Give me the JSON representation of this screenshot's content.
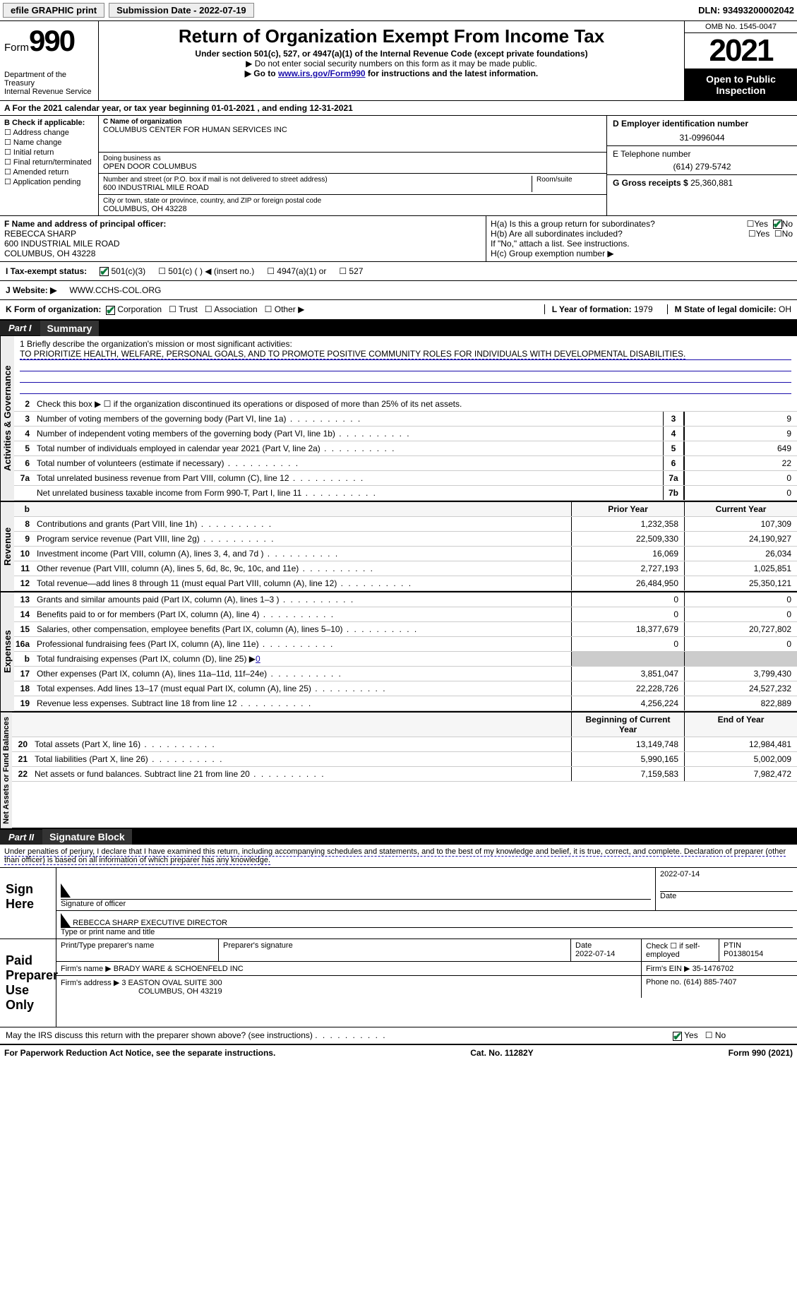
{
  "topbar": {
    "efile": "efile GRAPHIC print",
    "subdate_label": "Submission Date - ",
    "subdate": "2022-07-19",
    "dln_label": "DLN: ",
    "dln": "93493200002042"
  },
  "header": {
    "form_label": "Form",
    "form_num": "990",
    "dept": "Department of the Treasury\nInternal Revenue Service",
    "title": "Return of Organization Exempt From Income Tax",
    "sub": "Under section 501(c), 527, or 4947(a)(1) of the Internal Revenue Code (except private foundations)",
    "sub2": "▶ Do not enter social security numbers on this form as it may be made public.",
    "goto_pre": "▶ Go to ",
    "goto_link": "www.irs.gov/Form990",
    "goto_post": " for instructions and the latest information.",
    "omb": "OMB No. 1545-0047",
    "year": "2021",
    "open": "Open to Public Inspection"
  },
  "calyear": {
    "text_pre": "A For the 2021 calendar year, or tax year beginning ",
    "begin": "01-01-2021",
    "mid": " , and ending ",
    "end": "12-31-2021"
  },
  "B": {
    "label": "B Check if applicable:",
    "items": [
      "Address change",
      "Name change",
      "Initial return",
      "Final return/terminated",
      "Amended return",
      "Application pending"
    ]
  },
  "C": {
    "label": "C Name of organization",
    "name": "COLUMBUS CENTER FOR HUMAN SERVICES INC",
    "dba_label": "Doing business as",
    "dba": "OPEN DOOR COLUMBUS",
    "street_label": "Number and street (or P.O. box if mail is not delivered to street address)",
    "street": "600 INDUSTRIAL MILE ROAD",
    "room_label": "Room/suite",
    "city_label": "City or town, state or province, country, and ZIP or foreign postal code",
    "city": "COLUMBUS, OH  43228"
  },
  "D": {
    "label": "D Employer identification number",
    "value": "31-0996044"
  },
  "E": {
    "label": "E Telephone number",
    "value": "(614) 279-5742"
  },
  "G": {
    "label": "G Gross receipts $ ",
    "value": "25,360,881"
  },
  "F": {
    "label": "F  Name and address of principal officer:",
    "name": "REBECCA SHARP",
    "addr1": "600 INDUSTRIAL MILE ROAD",
    "addr2": "COLUMBUS, OH  43228"
  },
  "H": {
    "a": "H(a)  Is this a group return for subordinates?",
    "b": "H(b)  Are all subordinates included?",
    "b_note": "If \"No,\" attach a list. See instructions.",
    "c": "H(c)  Group exemption number ▶",
    "yes": "Yes",
    "no": "No"
  },
  "I": {
    "label": "I  Tax-exempt status:",
    "c3": "501(c)(3)",
    "c": "501(c) (  ) ◀ (insert no.)",
    "a1": "4947(a)(1) or",
    "s527": "527"
  },
  "J": {
    "label": "J  Website: ▶",
    "value": "WWW.CCHS-COL.ORG"
  },
  "K": {
    "label": "K Form of organization:",
    "corp": "Corporation",
    "trust": "Trust",
    "assoc": "Association",
    "other": "Other ▶"
  },
  "L": {
    "label": "L Year of formation: ",
    "value": "1979"
  },
  "M": {
    "label": "M State of legal domicile: ",
    "value": "OH"
  },
  "part1": {
    "num": "Part I",
    "title": "Summary"
  },
  "mission": {
    "label": "1  Briefly describe the organization's mission or most significant activities:",
    "text": "TO PRIORITIZE HEALTH, WELFARE, PERSONAL GOALS, AND TO PROMOTE POSITIVE COMMUNITY ROLES FOR INDIVIDUALS WITH DEVELOPMENTAL DISABILITIES."
  },
  "line2": "Check this box ▶ ☐ if the organization discontinued its operations or disposed of more than 25% of its net assets.",
  "gov_lines": [
    {
      "n": "3",
      "d": "Number of voting members of the governing body (Part VI, line 1a)",
      "box": "3",
      "v": "9"
    },
    {
      "n": "4",
      "d": "Number of independent voting members of the governing body (Part VI, line 1b)",
      "box": "4",
      "v": "9"
    },
    {
      "n": "5",
      "d": "Total number of individuals employed in calendar year 2021 (Part V, line 2a)",
      "box": "5",
      "v": "649"
    },
    {
      "n": "6",
      "d": "Total number of volunteers (estimate if necessary)",
      "box": "6",
      "v": "22"
    },
    {
      "n": "7a",
      "d": "Total unrelated business revenue from Part VIII, column (C), line 12",
      "box": "7a",
      "v": "0"
    },
    {
      "n": "",
      "d": "Net unrelated business taxable income from Form 990-T, Part I, line 11",
      "box": "7b",
      "v": "0"
    }
  ],
  "col_headers": {
    "prior": "Prior Year",
    "current": "Current Year"
  },
  "revenue": [
    {
      "n": "8",
      "d": "Contributions and grants (Part VIII, line 1h)",
      "p": "1,232,358",
      "c": "107,309"
    },
    {
      "n": "9",
      "d": "Program service revenue (Part VIII, line 2g)",
      "p": "22,509,330",
      "c": "24,190,927"
    },
    {
      "n": "10",
      "d": "Investment income (Part VIII, column (A), lines 3, 4, and 7d )",
      "p": "16,069",
      "c": "26,034"
    },
    {
      "n": "11",
      "d": "Other revenue (Part VIII, column (A), lines 5, 6d, 8c, 9c, 10c, and 11e)",
      "p": "2,727,193",
      "c": "1,025,851"
    },
    {
      "n": "12",
      "d": "Total revenue—add lines 8 through 11 (must equal Part VIII, column (A), line 12)",
      "p": "26,484,950",
      "c": "25,350,121"
    }
  ],
  "expenses": [
    {
      "n": "13",
      "d": "Grants and similar amounts paid (Part IX, column (A), lines 1–3 )",
      "p": "0",
      "c": "0"
    },
    {
      "n": "14",
      "d": "Benefits paid to or for members (Part IX, column (A), line 4)",
      "p": "0",
      "c": "0"
    },
    {
      "n": "15",
      "d": "Salaries, other compensation, employee benefits (Part IX, column (A), lines 5–10)",
      "p": "18,377,679",
      "c": "20,727,802"
    },
    {
      "n": "16a",
      "d": "Professional fundraising fees (Part IX, column (A), line 11e)",
      "p": "0",
      "c": "0"
    },
    {
      "n": "b",
      "d": "Total fundraising expenses (Part IX, column (D), line 25) ▶",
      "p": "GRAY",
      "c": "GRAY",
      "link": "0"
    },
    {
      "n": "17",
      "d": "Other expenses (Part IX, column (A), lines 11a–11d, 11f–24e)",
      "p": "3,851,047",
      "c": "3,799,430"
    },
    {
      "n": "18",
      "d": "Total expenses. Add lines 13–17 (must equal Part IX, column (A), line 25)",
      "p": "22,228,726",
      "c": "24,527,232"
    },
    {
      "n": "19",
      "d": "Revenue less expenses. Subtract line 18 from line 12",
      "p": "4,256,224",
      "c": "822,889"
    }
  ],
  "net_headers": {
    "begin": "Beginning of Current Year",
    "end": "End of Year"
  },
  "net": [
    {
      "n": "20",
      "d": "Total assets (Part X, line 16)",
      "p": "13,149,748",
      "c": "12,984,481"
    },
    {
      "n": "21",
      "d": "Total liabilities (Part X, line 26)",
      "p": "5,990,165",
      "c": "5,002,009"
    },
    {
      "n": "22",
      "d": "Net assets or fund balances. Subtract line 21 from line 20",
      "p": "7,159,583",
      "c": "7,982,472"
    }
  ],
  "part2": {
    "num": "Part II",
    "title": "Signature Block"
  },
  "penalty": "Under penalties of perjury, I declare that I have examined this return, including accompanying schedules and statements, and to the best of my knowledge and belief, it is true, correct, and complete. Declaration of preparer (other than officer) is based on all information of which preparer has any knowledge.",
  "sign": {
    "label": "Sign Here",
    "sig_of_officer": "Signature of officer",
    "date": "Date",
    "date_val": "2022-07-14",
    "name": "REBECCA SHARP  EXECUTIVE DIRECTOR",
    "name_label": "Type or print name and title"
  },
  "paid": {
    "label": "Paid Preparer Use Only",
    "print_label": "Print/Type preparer's name",
    "sig_label": "Preparer's signature",
    "date_label": "Date",
    "date_val": "2022-07-14",
    "check_label": "Check ☐ if self-employed",
    "ptin_label": "PTIN",
    "ptin": "P01380154",
    "firm_name_label": "Firm's name    ▶ ",
    "firm_name": "BRADY WARE & SCHOENFELD INC",
    "firm_ein_label": "Firm's EIN ▶ ",
    "firm_ein": "35-1476702",
    "firm_addr_label": "Firm's address ▶ ",
    "firm_addr1": "3 EASTON OVAL SUITE 300",
    "firm_addr2": "COLUMBUS, OH  43219",
    "phone_label": "Phone no. ",
    "phone": "(614) 885-7407"
  },
  "discuss": {
    "text": "May the IRS discuss this return with the preparer shown above? (see instructions)",
    "yes": "Yes",
    "no": "No"
  },
  "footer": {
    "left": "For Paperwork Reduction Act Notice, see the separate instructions.",
    "mid": "Cat. No. 11282Y",
    "right": "Form 990 (2021)"
  },
  "vlabels": {
    "gov": "Activities & Governance",
    "rev": "Revenue",
    "exp": "Expenses",
    "net": "Net Assets or Fund Balances"
  }
}
